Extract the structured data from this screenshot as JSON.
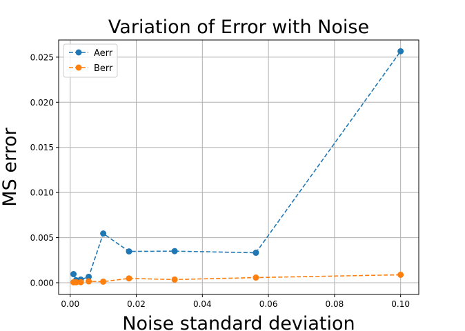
{
  "chart_data": {
    "type": "line",
    "title": "Variation of Error with Noise",
    "xlabel": "Noise standard deviation",
    "ylabel": "MS error",
    "xlim": [
      -0.0035,
      0.1055
    ],
    "ylim": [
      -0.0013,
      0.0269
    ],
    "xticks": [
      0.0,
      0.02,
      0.04,
      0.06,
      0.08,
      0.1
    ],
    "xtick_labels": [
      "0.00",
      "0.02",
      "0.04",
      "0.06",
      "0.08",
      "0.10"
    ],
    "yticks": [
      0.0,
      0.005,
      0.01,
      0.015,
      0.02,
      0.025
    ],
    "ytick_labels": [
      "0.000",
      "0.005",
      "0.010",
      "0.015",
      "0.020",
      "0.025"
    ],
    "grid": true,
    "legend_position": "top-left",
    "series": [
      {
        "name": "Aerr",
        "color": "#1f77b4",
        "x": [
          0.001,
          0.0018,
          0.0032,
          0.0056,
          0.01,
          0.0178,
          0.0316,
          0.0562,
          0.1
        ],
        "y": [
          0.00095,
          0.00028,
          0.00035,
          0.00065,
          0.00545,
          0.00347,
          0.0035,
          0.00332,
          0.02565
        ]
      },
      {
        "name": "Berr",
        "color": "#ff7f0e",
        "x": [
          0.001,
          0.0018,
          0.0032,
          0.0056,
          0.01,
          0.0178,
          0.0316,
          0.0562,
          0.1
        ],
        "y": [
          5e-05,
          5e-05,
          6e-05,
          0.00015,
          0.00012,
          0.00048,
          0.00035,
          0.00057,
          0.00088
        ]
      }
    ]
  }
}
